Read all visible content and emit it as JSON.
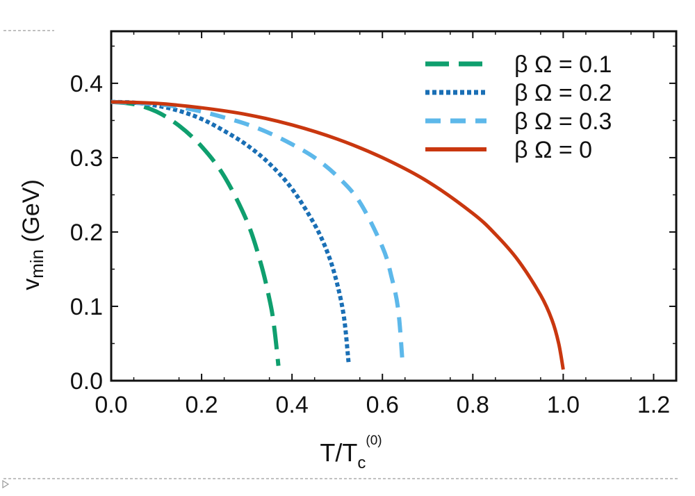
{
  "chart_data": {
    "type": "line",
    "title": "",
    "xlabel": {
      "base": "T/T",
      "sub": "c",
      "sup": "(0)"
    },
    "ylabel": {
      "base": "v",
      "sub": "min",
      "unit": "(GeV)"
    },
    "xlim": [
      0.0,
      1.25
    ],
    "ylim": [
      0.0,
      0.47
    ],
    "xticks": [
      0.0,
      0.2,
      0.4,
      0.6,
      0.8,
      1.0,
      1.2
    ],
    "xtick_labels": [
      "0.0",
      "0.2",
      "0.4",
      "0.6",
      "0.8",
      "1.0",
      "1.2"
    ],
    "yticks": [
      0.0,
      0.1,
      0.2,
      0.3,
      0.4
    ],
    "ytick_labels": [
      "0.0",
      "0.1",
      "0.2",
      "0.3",
      "0.4"
    ],
    "grid": false,
    "legend_position": "top-right",
    "series": [
      {
        "name": "β Ω = 0.1",
        "color": "#0f9f6e",
        "style": "long-dash",
        "x": [
          0.0,
          0.05,
          0.1,
          0.15,
          0.2,
          0.25,
          0.3,
          0.33,
          0.35,
          0.36,
          0.37
        ],
        "y": [
          0.375,
          0.372,
          0.362,
          0.343,
          0.315,
          0.275,
          0.215,
          0.16,
          0.11,
          0.075,
          0.02
        ]
      },
      {
        "name": "β Ω = 0.2",
        "color": "#1a6fb5",
        "style": "dotted",
        "x": [
          0.0,
          0.05,
          0.1,
          0.15,
          0.2,
          0.25,
          0.3,
          0.35,
          0.4,
          0.45,
          0.48,
          0.5,
          0.515,
          0.525
        ],
        "y": [
          0.375,
          0.374,
          0.37,
          0.363,
          0.352,
          0.336,
          0.317,
          0.292,
          0.258,
          0.21,
          0.17,
          0.13,
          0.085,
          0.025
        ]
      },
      {
        "name": "β Ω = 0.3",
        "color": "#5db8ea",
        "style": "short-dash",
        "x": [
          0.0,
          0.1,
          0.15,
          0.2,
          0.25,
          0.3,
          0.35,
          0.4,
          0.45,
          0.5,
          0.55,
          0.6,
          0.62,
          0.635,
          0.645
        ],
        "y": [
          0.375,
          0.372,
          0.368,
          0.362,
          0.354,
          0.345,
          0.333,
          0.318,
          0.3,
          0.275,
          0.24,
          0.18,
          0.14,
          0.095,
          0.02
        ]
      },
      {
        "name": "β Ω = 0",
        "color": "#c9370f",
        "style": "solid",
        "x": [
          0.0,
          0.1,
          0.2,
          0.3,
          0.4,
          0.5,
          0.6,
          0.7,
          0.8,
          0.85,
          0.9,
          0.95,
          0.975,
          0.99,
          1.0
        ],
        "y": [
          0.375,
          0.373,
          0.367,
          0.358,
          0.344,
          0.325,
          0.3,
          0.268,
          0.225,
          0.197,
          0.162,
          0.115,
          0.082,
          0.05,
          0.015
        ]
      }
    ]
  }
}
